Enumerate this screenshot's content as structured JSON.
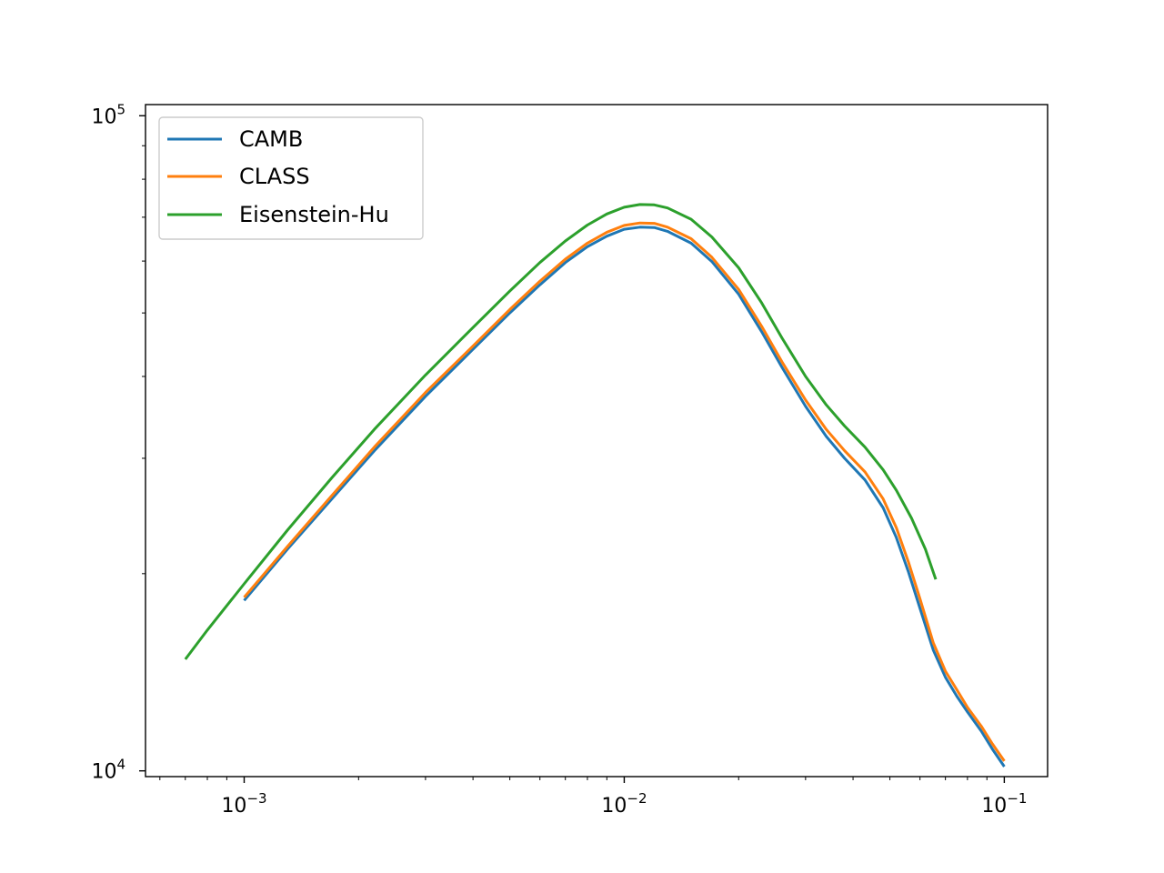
{
  "chart_data": {
    "type": "line",
    "title": "",
    "xlabel": "",
    "ylabel": "",
    "xscale": "log",
    "yscale": "log",
    "xlim": [
      0.00055,
      0.13
    ],
    "ylim": [
      9800,
      104000
    ],
    "x_ticks": [
      {
        "value": 0.001,
        "base": "10",
        "exp": "−3"
      },
      {
        "value": 0.01,
        "base": "10",
        "exp": "−2"
      },
      {
        "value": 0.1,
        "base": "10",
        "exp": "−1"
      }
    ],
    "y_ticks": [
      {
        "value": 10000,
        "base": "10",
        "exp": "4"
      },
      {
        "value": 100000,
        "base": "10",
        "exp": "5"
      }
    ],
    "grid": false,
    "legend": "top-left",
    "series": [
      {
        "name": "CAMB",
        "color": "#1f77b4",
        "points": [
          [
            0.001,
            18200
          ],
          [
            0.0013,
            21800
          ],
          [
            0.0017,
            26000
          ],
          [
            0.0022,
            30800
          ],
          [
            0.003,
            37300
          ],
          [
            0.004,
            44000
          ],
          [
            0.005,
            50000
          ],
          [
            0.006,
            55200
          ],
          [
            0.007,
            59700
          ],
          [
            0.008,
            63100
          ],
          [
            0.009,
            65500
          ],
          [
            0.01,
            67100
          ],
          [
            0.011,
            67600
          ],
          [
            0.012,
            67500
          ],
          [
            0.013,
            66600
          ],
          [
            0.015,
            63900
          ],
          [
            0.017,
            59900
          ],
          [
            0.02,
            53400
          ],
          [
            0.023,
            46800
          ],
          [
            0.026,
            41300
          ],
          [
            0.03,
            36000
          ],
          [
            0.034,
            32400
          ],
          [
            0.038,
            30000
          ],
          [
            0.043,
            27800
          ],
          [
            0.048,
            25200
          ],
          [
            0.052,
            22700
          ],
          [
            0.056,
            20100
          ],
          [
            0.06,
            17700
          ],
          [
            0.065,
            15300
          ],
          [
            0.07,
            13900
          ],
          [
            0.075,
            13000
          ],
          [
            0.08,
            12300
          ],
          [
            0.087,
            11500
          ],
          [
            0.093,
            10800
          ],
          [
            0.1,
            10150
          ]
        ]
      },
      {
        "name": "CLASS",
        "color": "#ff7f0e",
        "points": [
          [
            0.001,
            18400
          ],
          [
            0.0013,
            22000
          ],
          [
            0.0017,
            26300
          ],
          [
            0.0022,
            31200
          ],
          [
            0.003,
            37800
          ],
          [
            0.004,
            44500
          ],
          [
            0.005,
            50600
          ],
          [
            0.006,
            55900
          ],
          [
            0.007,
            60400
          ],
          [
            0.008,
            63900
          ],
          [
            0.009,
            66400
          ],
          [
            0.01,
            68000
          ],
          [
            0.011,
            68600
          ],
          [
            0.012,
            68500
          ],
          [
            0.013,
            67600
          ],
          [
            0.015,
            64900
          ],
          [
            0.017,
            60800
          ],
          [
            0.02,
            54300
          ],
          [
            0.023,
            47700
          ],
          [
            0.026,
            42100
          ],
          [
            0.03,
            36800
          ],
          [
            0.034,
            33200
          ],
          [
            0.038,
            30800
          ],
          [
            0.043,
            28600
          ],
          [
            0.048,
            26000
          ],
          [
            0.052,
            23500
          ],
          [
            0.056,
            20800
          ],
          [
            0.06,
            18300
          ],
          [
            0.065,
            15700
          ],
          [
            0.07,
            14200
          ],
          [
            0.075,
            13300
          ],
          [
            0.08,
            12500
          ],
          [
            0.087,
            11700
          ],
          [
            0.093,
            11000
          ],
          [
            0.1,
            10350
          ]
        ]
      },
      {
        "name": "Eisenstein-Hu",
        "color": "#2ca02c",
        "points": [
          [
            0.0007,
            14800
          ],
          [
            0.0008,
            16400
          ],
          [
            0.001,
            19300
          ],
          [
            0.0013,
            23300
          ],
          [
            0.0017,
            28000
          ],
          [
            0.0022,
            33200
          ],
          [
            0.003,
            40200
          ],
          [
            0.004,
            47500
          ],
          [
            0.005,
            54000
          ],
          [
            0.006,
            59700
          ],
          [
            0.007,
            64400
          ],
          [
            0.008,
            68100
          ],
          [
            0.009,
            70800
          ],
          [
            0.01,
            72500
          ],
          [
            0.011,
            73200
          ],
          [
            0.012,
            73100
          ],
          [
            0.013,
            72300
          ],
          [
            0.015,
            69500
          ],
          [
            0.017,
            65300
          ],
          [
            0.02,
            58600
          ],
          [
            0.023,
            51800
          ],
          [
            0.026,
            45800
          ],
          [
            0.03,
            40000
          ],
          [
            0.034,
            36200
          ],
          [
            0.038,
            33600
          ],
          [
            0.043,
            31200
          ],
          [
            0.048,
            28800
          ],
          [
            0.052,
            26800
          ],
          [
            0.057,
            24300
          ],
          [
            0.062,
            21800
          ],
          [
            0.066,
            19600
          ]
        ]
      }
    ]
  }
}
